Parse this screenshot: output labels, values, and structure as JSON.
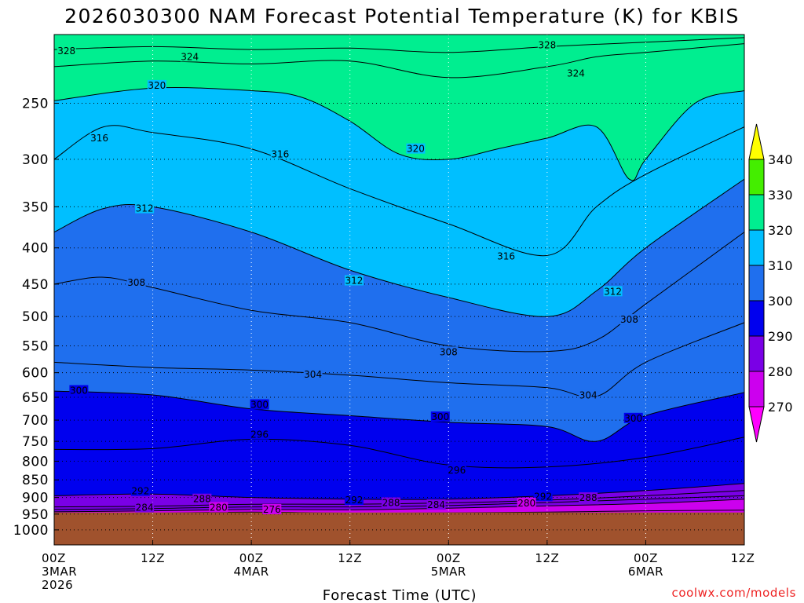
{
  "chart_data": {
    "type": "area",
    "title": "2026030300 NAM Forecast Potential Temperature (K) for KBIS",
    "xlabel": "Forecast Time (UTC)",
    "ylabel": "Pressure (hPa)",
    "credit": "coolwx.com/models",
    "x_range_hours": [
      0,
      84
    ],
    "y_range_hpa": [
      200,
      1050
    ],
    "y_ticks": [
      250,
      300,
      350,
      400,
      450,
      500,
      550,
      600,
      650,
      700,
      750,
      800,
      850,
      900,
      950,
      1000
    ],
    "x_ticks": [
      {
        "hour": 0,
        "lines": [
          "00Z",
          "3MAR",
          "2026"
        ]
      },
      {
        "hour": 12,
        "lines": [
          "12Z"
        ]
      },
      {
        "hour": 24,
        "lines": [
          "00Z",
          "4MAR"
        ]
      },
      {
        "hour": 36,
        "lines": [
          "12Z"
        ]
      },
      {
        "hour": 48,
        "lines": [
          "00Z",
          "5MAR"
        ]
      },
      {
        "hour": 60,
        "lines": [
          "12Z"
        ]
      },
      {
        "hour": 72,
        "lines": [
          "00Z",
          "6MAR"
        ]
      },
      {
        "hour": 84,
        "lines": [
          "12Z"
        ]
      }
    ],
    "ground_pressure_hpa": 945,
    "colorbar": {
      "levels": [
        270,
        280,
        290,
        300,
        310,
        320,
        330,
        340
      ],
      "bands": [
        {
          "from": 260,
          "to": 270,
          "color": "#ff00ff",
          "end": "arrow-down"
        },
        {
          "from": 270,
          "to": 280,
          "color": "#cc00ee"
        },
        {
          "from": 280,
          "to": 290,
          "color": "#7a00e6"
        },
        {
          "from": 290,
          "to": 300,
          "color": "#0000ee"
        },
        {
          "from": 300,
          "to": 310,
          "color": "#1f6fee"
        },
        {
          "from": 310,
          "to": 320,
          "color": "#00bfff"
        },
        {
          "from": 320,
          "to": 330,
          "color": "#00ee90"
        },
        {
          "from": 330,
          "to": 340,
          "color": "#44ee00"
        },
        {
          "from": 340,
          "to": 350,
          "color": "#ffff00",
          "end": "arrow-up"
        }
      ]
    },
    "isentropes": [
      {
        "theta": 276,
        "points": [
          [
            0,
            948
          ],
          [
            12,
            947
          ],
          [
            24,
            944
          ],
          [
            36,
            947
          ],
          [
            48,
            946
          ],
          [
            60,
            944
          ],
          [
            72,
            940
          ],
          [
            84,
            938
          ]
        ]
      },
      {
        "theta": 280,
        "points": [
          [
            0,
            943
          ],
          [
            12,
            940
          ],
          [
            24,
            936
          ],
          [
            36,
            937
          ],
          [
            48,
            932
          ],
          [
            60,
            925
          ],
          [
            72,
            918
          ],
          [
            84,
            905
          ]
        ]
      },
      {
        "theta": 284,
        "points": [
          [
            0,
            936
          ],
          [
            12,
            933
          ],
          [
            24,
            928
          ],
          [
            36,
            928
          ],
          [
            48,
            924
          ],
          [
            60,
            915
          ],
          [
            72,
            905
          ],
          [
            84,
            895
          ]
        ]
      },
      {
        "theta": 288,
        "points": [
          [
            0,
            928
          ],
          [
            12,
            926
          ],
          [
            24,
            920
          ],
          [
            36,
            920
          ],
          [
            48,
            916
          ],
          [
            60,
            908
          ],
          [
            72,
            895
          ],
          [
            84,
            880
          ]
        ]
      },
      {
        "theta": 292,
        "points": [
          [
            0,
            895
          ],
          [
            12,
            890
          ],
          [
            24,
            900
          ],
          [
            36,
            905
          ],
          [
            48,
            905
          ],
          [
            60,
            895
          ],
          [
            72,
            880
          ],
          [
            84,
            860
          ]
        ]
      },
      {
        "theta": 296,
        "points": [
          [
            0,
            770
          ],
          [
            12,
            768
          ],
          [
            24,
            745
          ],
          [
            36,
            760
          ],
          [
            48,
            810
          ],
          [
            60,
            815
          ],
          [
            72,
            790
          ],
          [
            84,
            740
          ]
        ]
      },
      {
        "theta": 300,
        "points": [
          [
            0,
            637
          ],
          [
            12,
            645
          ],
          [
            24,
            675
          ],
          [
            36,
            690
          ],
          [
            48,
            705
          ],
          [
            60,
            715
          ],
          [
            66,
            750
          ],
          [
            72,
            690
          ],
          [
            84,
            640
          ]
        ]
      },
      {
        "theta": 304,
        "points": [
          [
            0,
            580
          ],
          [
            12,
            590
          ],
          [
            24,
            595
          ],
          [
            36,
            605
          ],
          [
            48,
            620
          ],
          [
            60,
            630
          ],
          [
            66,
            648
          ],
          [
            72,
            580
          ],
          [
            84,
            510
          ]
        ]
      },
      {
        "theta": 308,
        "points": [
          [
            0,
            450
          ],
          [
            6,
            440
          ],
          [
            12,
            455
          ],
          [
            24,
            490
          ],
          [
            36,
            510
          ],
          [
            48,
            550
          ],
          [
            60,
            560
          ],
          [
            66,
            540
          ],
          [
            72,
            480
          ],
          [
            84,
            380
          ]
        ]
      },
      {
        "theta": 312,
        "points": [
          [
            0,
            380
          ],
          [
            6,
            352
          ],
          [
            12,
            350
          ],
          [
            24,
            380
          ],
          [
            36,
            430
          ],
          [
            48,
            470
          ],
          [
            60,
            500
          ],
          [
            66,
            460
          ],
          [
            72,
            400
          ],
          [
            84,
            320
          ]
        ]
      },
      {
        "theta": 316,
        "points": [
          [
            0,
            300
          ],
          [
            6,
            270
          ],
          [
            12,
            275
          ],
          [
            24,
            290
          ],
          [
            36,
            330
          ],
          [
            48,
            370
          ],
          [
            60,
            410
          ],
          [
            66,
            350
          ],
          [
            72,
            315
          ],
          [
            84,
            270
          ]
        ]
      },
      {
        "theta": 320,
        "points": [
          [
            0,
            248
          ],
          [
            12,
            238
          ],
          [
            24,
            240
          ],
          [
            30,
            245
          ],
          [
            36,
            265
          ],
          [
            42,
            295
          ],
          [
            48,
            300
          ],
          [
            54,
            290
          ],
          [
            60,
            280
          ],
          [
            66,
            270
          ],
          [
            70,
            320
          ],
          [
            72,
            300
          ],
          [
            78,
            250
          ],
          [
            84,
            240
          ]
        ]
      },
      {
        "theta": 324,
        "points": [
          [
            0,
            222
          ],
          [
            12,
            218
          ],
          [
            24,
            220
          ],
          [
            36,
            218
          ],
          [
            48,
            230
          ],
          [
            60,
            222
          ],
          [
            66,
            215
          ],
          [
            72,
            212
          ],
          [
            84,
            206
          ]
        ]
      },
      {
        "theta": 328,
        "points": [
          [
            0,
            210
          ],
          [
            12,
            208
          ],
          [
            24,
            210
          ],
          [
            36,
            209
          ],
          [
            48,
            212
          ],
          [
            60,
            208
          ],
          [
            72,
            205
          ],
          [
            84,
            202
          ]
        ]
      }
    ],
    "contour_labels": [
      {
        "text": "328",
        "hour": 1.5,
        "hpa": 211
      },
      {
        "text": "324",
        "hour": 16.5,
        "hpa": 215
      },
      {
        "text": "328",
        "hour": 60,
        "hpa": 207
      },
      {
        "text": "324",
        "hour": 63.5,
        "hpa": 227
      },
      {
        "text": "320",
        "hour": 12.5,
        "hpa": 236
      },
      {
        "text": "316",
        "hour": 5.5,
        "hpa": 280
      },
      {
        "text": "316",
        "hour": 27.5,
        "hpa": 295
      },
      {
        "text": "320",
        "hour": 44,
        "hpa": 290
      },
      {
        "text": "312",
        "hour": 11,
        "hpa": 352
      },
      {
        "text": "316",
        "hour": 55,
        "hpa": 411
      },
      {
        "text": "312",
        "hour": 36.5,
        "hpa": 445
      },
      {
        "text": "312",
        "hour": 68,
        "hpa": 461
      },
      {
        "text": "308",
        "hour": 10,
        "hpa": 448
      },
      {
        "text": "308",
        "hour": 70,
        "hpa": 505
      },
      {
        "text": "308",
        "hour": 48,
        "hpa": 561
      },
      {
        "text": "304",
        "hour": 31.5,
        "hpa": 604
      },
      {
        "text": "304",
        "hour": 65,
        "hpa": 646
      },
      {
        "text": "300",
        "hour": 3,
        "hpa": 636
      },
      {
        "text": "300",
        "hour": 25,
        "hpa": 666
      },
      {
        "text": "300",
        "hour": 47,
        "hpa": 693
      },
      {
        "text": "300",
        "hour": 70.5,
        "hpa": 696
      },
      {
        "text": "296",
        "hour": 25,
        "hpa": 734
      },
      {
        "text": "296",
        "hour": 49,
        "hpa": 824
      },
      {
        "text": "292",
        "hour": 10.5,
        "hpa": 882
      },
      {
        "text": "292",
        "hour": 36.5,
        "hpa": 908
      },
      {
        "text": "292",
        "hour": 59.5,
        "hpa": 897
      },
      {
        "text": "288",
        "hour": 18,
        "hpa": 905
      },
      {
        "text": "288",
        "hour": 41,
        "hpa": 916
      },
      {
        "text": "288",
        "hour": 65,
        "hpa": 901
      },
      {
        "text": "284",
        "hour": 11,
        "hpa": 930
      },
      {
        "text": "284",
        "hour": 46.5,
        "hpa": 922
      },
      {
        "text": "280",
        "hour": 20,
        "hpa": 930
      },
      {
        "text": "280",
        "hour": 57.5,
        "hpa": 917
      },
      {
        "text": "276",
        "hour": 26.5,
        "hpa": 936
      }
    ]
  }
}
